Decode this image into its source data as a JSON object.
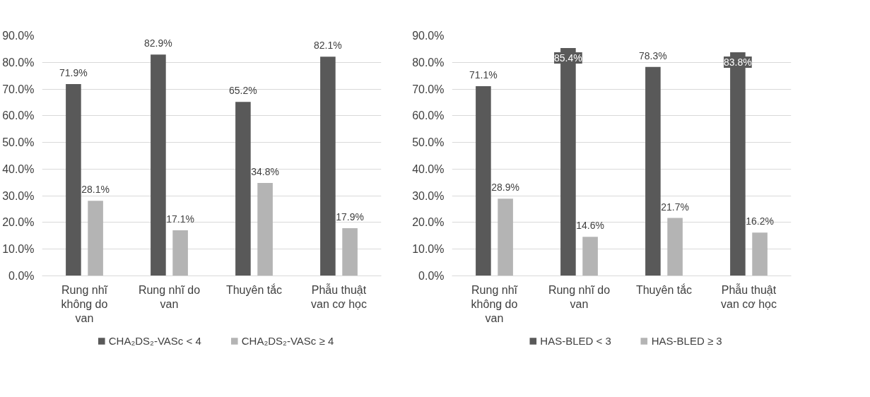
{
  "chart_data": [
    {
      "type": "bar",
      "categories": [
        "Rung nhĩ không do van",
        "Rung nhĩ do van",
        "Thuyên tắc",
        "Phẫu thuật van cơ học"
      ],
      "series": [
        {
          "name": "CHA₂DS₂-VASc < 4",
          "color": "#595959",
          "values": [
            71.9,
            82.9,
            65.2,
            82.1
          ],
          "value_labels": [
            "71.9%",
            "82.9%",
            "65.2%",
            "82.1%"
          ]
        },
        {
          "name": "CHA₂DS₂-VASc ≥ 4",
          "color": "#b4b4b4",
          "values": [
            28.1,
            17.1,
            34.8,
            17.9
          ],
          "value_labels": [
            "28.1%",
            "17.1%",
            "34.8%",
            "17.9%"
          ]
        }
      ],
      "ylim": [
        0,
        90
      ],
      "yticks": [
        {
          "value": 0,
          "label": "0.0%"
        },
        {
          "value": 10,
          "label": "10.0%"
        },
        {
          "value": 20,
          "label": "20.0%"
        },
        {
          "value": 30,
          "label": "30.0%"
        },
        {
          "value": 40,
          "label": "40.0%"
        },
        {
          "value": 50,
          "label": "50.0%"
        },
        {
          "value": 60,
          "label": "60.0%"
        },
        {
          "value": 70,
          "label": "70.0%"
        },
        {
          "value": 80,
          "label": "80.0%"
        },
        {
          "value": 90,
          "label": "90.0%"
        }
      ],
      "grid": "y",
      "legend": "bottom"
    },
    {
      "type": "bar",
      "categories": [
        "Rung nhĩ không do van",
        "Rung nhĩ do van",
        "Thuyên tắc",
        "Phẫu thuật van cơ học"
      ],
      "series": [
        {
          "name": "HAS-BLED < 3",
          "color": "#595959",
          "values": [
            71.1,
            85.4,
            78.3,
            83.8
          ],
          "value_labels": [
            "71.1%",
            "85.4%",
            "78.3%",
            "83.8%"
          ]
        },
        {
          "name": "HAS-BLED ≥ 3",
          "color": "#b4b4b4",
          "values": [
            28.9,
            14.6,
            21.7,
            16.2
          ],
          "value_labels": [
            "28.9%",
            "14.6%",
            "21.7%",
            "16.2%"
          ]
        }
      ],
      "ylim": [
        0,
        90
      ],
      "yticks": [
        {
          "value": 0,
          "label": "0.0%"
        },
        {
          "value": 10,
          "label": "10.0%"
        },
        {
          "value": 20,
          "label": "20.0%"
        },
        {
          "value": 30,
          "label": "30.0%"
        },
        {
          "value": 40,
          "label": "40.0%"
        },
        {
          "value": 50,
          "label": "50.0%"
        },
        {
          "value": 60,
          "label": "60.0%"
        },
        {
          "value": 70,
          "label": "70.0%"
        },
        {
          "value": 80,
          "label": "80.0%"
        },
        {
          "value": 90,
          "label": "90.0%"
        }
      ],
      "grid": "y",
      "legend": "bottom"
    }
  ]
}
